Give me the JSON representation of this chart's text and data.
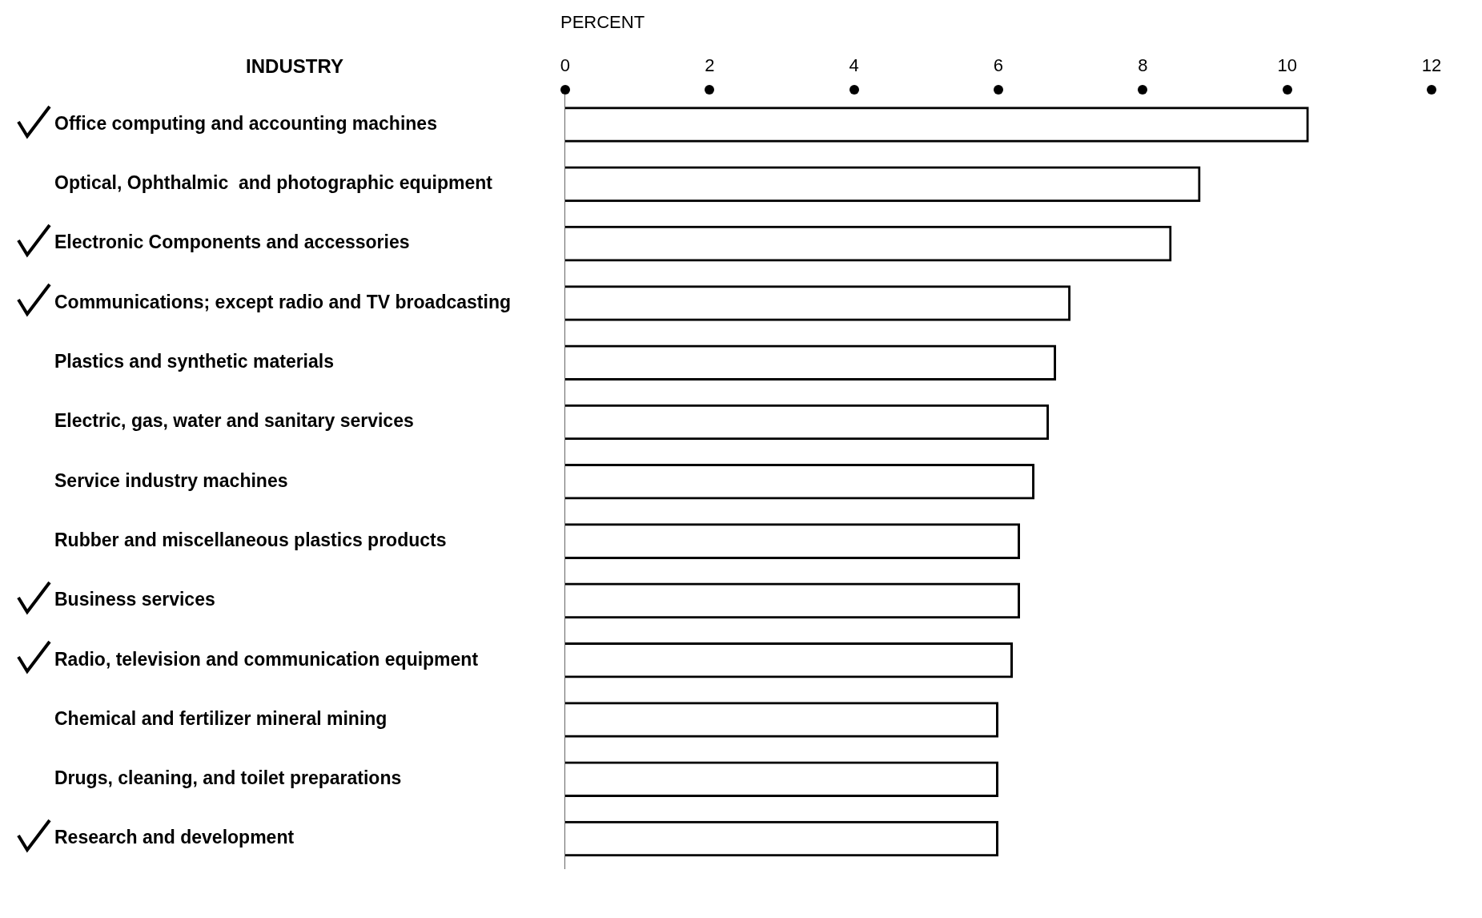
{
  "chart_data": {
    "type": "bar",
    "orientation": "horizontal",
    "xlabel": "PERCENT",
    "ylabel": "INDUSTRY",
    "categories": [
      "Office computing and accounting machines",
      "Optical, Ophthalmic  and photographic equipment",
      "Electronic Components and accessories",
      "Communications; except radio and TV broadcasting",
      "Plastics and synthetic materials",
      "Electric, gas, water and sanitary services",
      "Service industry machines",
      "Rubber and miscellaneous plastics products",
      "Business services",
      "Radio, television and communication equipment",
      "Chemical and fertilizer mineral mining",
      "Drugs, cleaning, and toilet preparations",
      "Research and development"
    ],
    "values": [
      10.3,
      8.8,
      8.4,
      7.0,
      6.8,
      6.7,
      6.5,
      6.3,
      6.3,
      6.2,
      6.0,
      6.0,
      6.0
    ],
    "color": "#000000",
    "xlim": [
      0,
      12
    ],
    "xticks": [
      0,
      2,
      4,
      6,
      8,
      10,
      12
    ],
    "grid": false,
    "legend": false
  }
}
